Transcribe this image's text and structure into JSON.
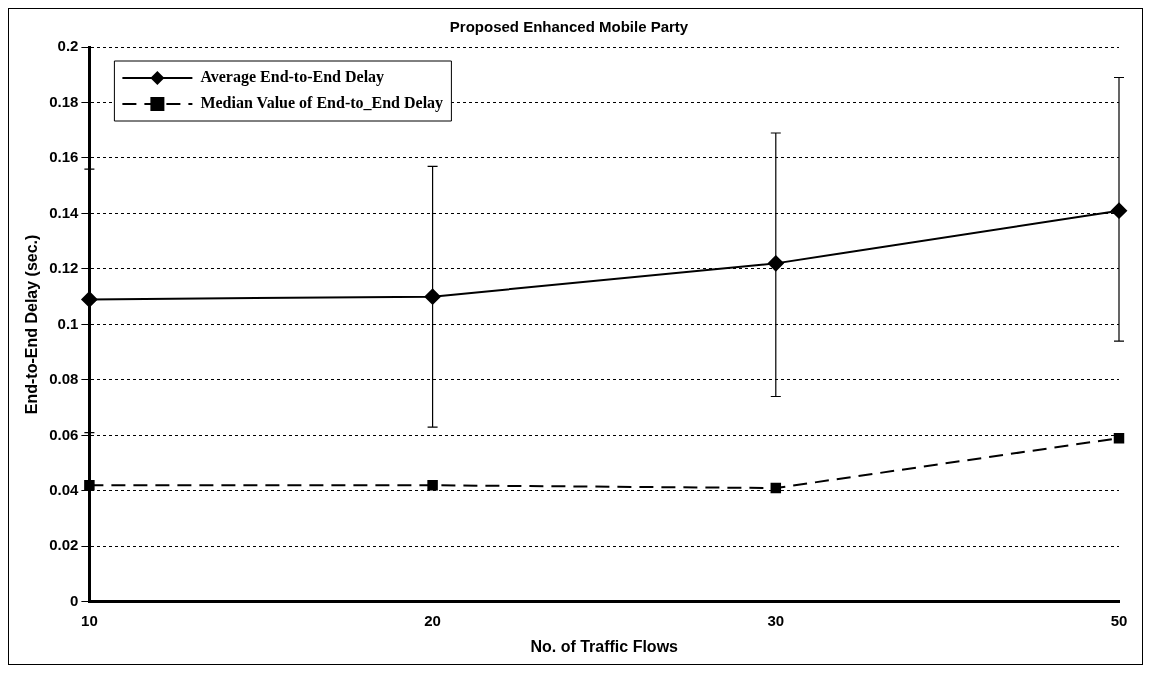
{
  "chart_data": {
    "type": "line",
    "title": "Proposed Enhanced Mobile Party",
    "xlabel": "No. of Traffic Flows",
    "ylabel": "End-to-End Delay (sec.)",
    "categories": [
      "10",
      "20",
      "30",
      "50"
    ],
    "series": [
      {
        "name": "Average End-to-End Delay",
        "color": "#000000",
        "values": [
          0.109,
          0.11,
          0.122,
          0.141
        ],
        "errors": [
          [
            0.061,
            0.156
          ],
          [
            0.063,
            0.157
          ],
          [
            0.074,
            0.169
          ],
          [
            0.094,
            0.189
          ]
        ],
        "marker": "diamond",
        "line_style": "solid"
      },
      {
        "name": "Median Value of End-to_End Delay",
        "color": "#000000",
        "values": [
          0.042,
          0.042,
          0.041,
          0.059
        ],
        "marker": "square",
        "line_style": "dashed"
      }
    ],
    "ylim": [
      0,
      0.2
    ],
    "yticks": [
      0,
      0.02,
      0.04,
      0.06,
      0.08,
      0.1,
      0.12,
      0.14,
      0.16,
      0.18,
      0.2
    ],
    "grid": "y",
    "legend": "top left"
  }
}
